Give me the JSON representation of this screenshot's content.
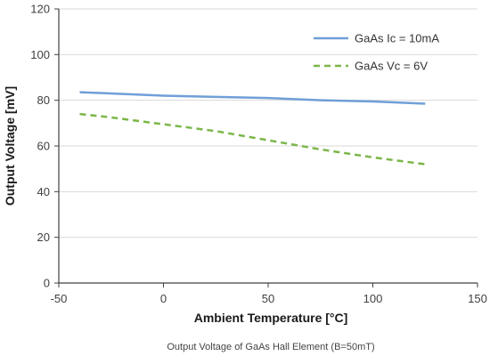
{
  "chart_data": {
    "type": "line",
    "title": "",
    "xlabel": "Ambient Temperature [°C]",
    "ylabel": "Output Voltage [mV]",
    "caption": "Output Voltage of GaAs Hall Element (B=50mT)",
    "xlim": [
      -50,
      150
    ],
    "ylim": [
      0,
      120
    ],
    "xticks": [
      -50,
      0,
      50,
      100,
      150
    ],
    "yticks": [
      0,
      20,
      40,
      60,
      80,
      100,
      120
    ],
    "xtick_labels": [
      "-50",
      "0",
      "50",
      "100",
      "150"
    ],
    "ytick_labels": [
      "0",
      "20",
      "40",
      "60",
      "80",
      "100",
      "120"
    ],
    "grid": "horizontal",
    "legend_position": "top-right",
    "series": [
      {
        "name": "GaAs Ic = 10mA",
        "style": "solid",
        "color": "#6f9fd8",
        "x": [
          -40,
          -25,
          0,
          25,
          50,
          75,
          100,
          125
        ],
        "y": [
          83.5,
          83.0,
          82.0,
          81.5,
          81.0,
          80.0,
          79.5,
          78.5
        ]
      },
      {
        "name": "GaAs Vc = 6V",
        "style": "dashed",
        "color": "#7ab648",
        "x": [
          -40,
          -25,
          0,
          25,
          50,
          75,
          100,
          125
        ],
        "y": [
          74.0,
          72.5,
          69.5,
          66.5,
          62.5,
          58.5,
          55.0,
          52.0
        ]
      }
    ]
  }
}
